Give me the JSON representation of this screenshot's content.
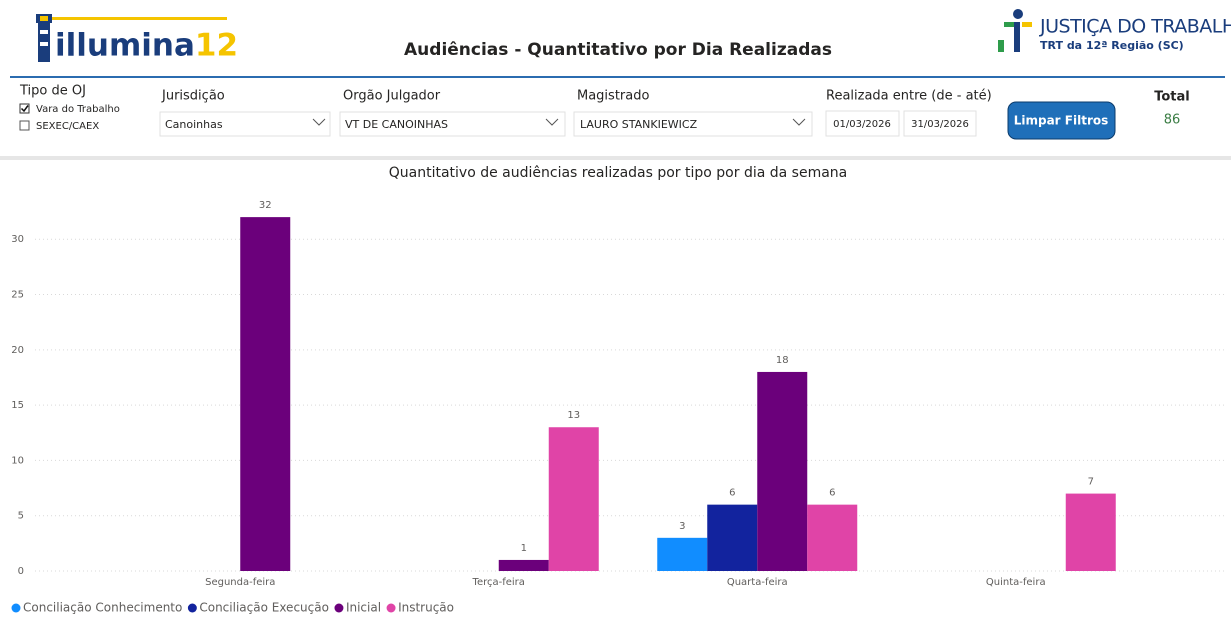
{
  "header": {
    "logo_text": "illumina",
    "logo_number": "12",
    "title": "Audiências - Quantitativo por Dia Realizadas",
    "org_name": "JUSTIÇA DO TRABALHO",
    "org_region": "TRT da 12ª Região (SC)"
  },
  "filters": {
    "tipo_oj": {
      "label": "Tipo de OJ",
      "options": [
        "Vara do Trabalho",
        "SEXEC/CAEX"
      ]
    },
    "jurisdicao": {
      "label": "Jurisdição",
      "value": "Canoinhas"
    },
    "orgao": {
      "label": "Orgão Julgador",
      "value": "VT DE CANOINHAS"
    },
    "magistrado": {
      "label": "Magistrado",
      "value": "LAURO STANKIEWICZ"
    },
    "periodo": {
      "label": "Realizada entre (de - até)",
      "from": "01/03/2026",
      "to": "31/03/2026"
    },
    "button": "Limpar Filtros",
    "total": {
      "label": "Total",
      "value": "86"
    }
  },
  "chart_data": {
    "type": "bar",
    "title": "Quantitativo de audiências realizadas por tipo por dia da semana",
    "categories": [
      "Segunda-feira",
      "Terça-feira",
      "Quarta-feira",
      "Quinta-feira"
    ],
    "series": [
      {
        "name": "Conciliação Conhecimento",
        "color": "#118DFF",
        "values": [
          null,
          null,
          3,
          null
        ]
      },
      {
        "name": "Conciliação Execução",
        "color": "#12239E",
        "values": [
          null,
          null,
          6,
          null
        ]
      },
      {
        "name": "Inicial",
        "color": "#6B007B",
        "values": [
          32,
          1,
          18,
          null
        ]
      },
      {
        "name": "Instrução",
        "color": "#E044A7",
        "values": [
          null,
          13,
          6,
          7
        ]
      }
    ],
    "ylim": [
      0,
      34
    ],
    "yticks": [
      0,
      5,
      10,
      15,
      20,
      25,
      30
    ],
    "grid": true,
    "legend": "bottom-left"
  }
}
